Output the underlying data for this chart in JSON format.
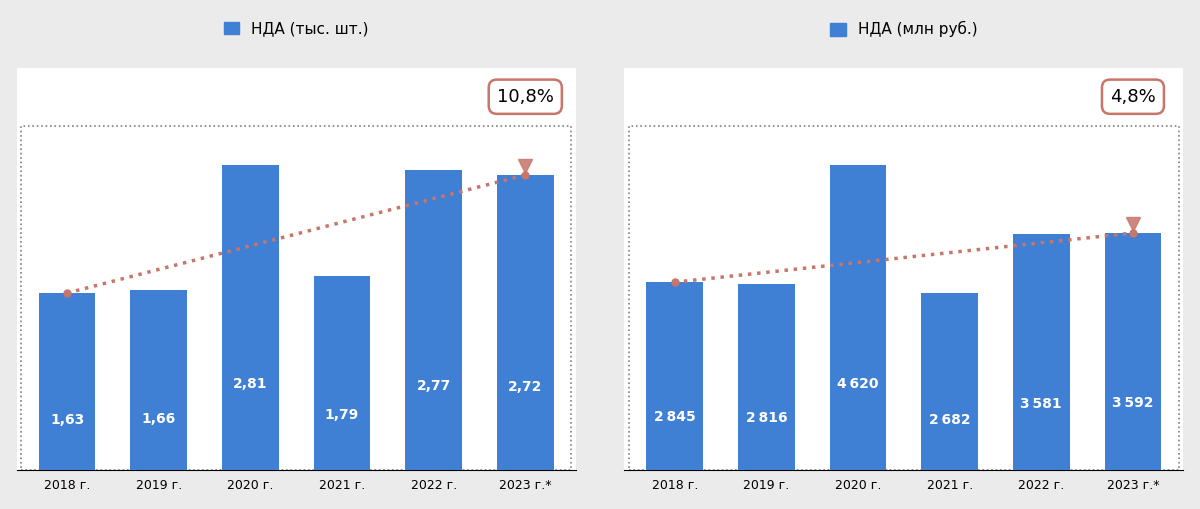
{
  "left_categories": [
    "2018 г.",
    "2019 г.",
    "2020 г.",
    "2021 г.",
    "2022 г.",
    "2023 г.*"
  ],
  "left_values": [
    1.63,
    1.66,
    2.81,
    1.79,
    2.77,
    2.72
  ],
  "left_legend": "НДА (тыс. шт.)",
  "left_cagr": "10,8%",
  "right_categories": [
    "2018 г.",
    "2019 г.",
    "2020 г.",
    "2021 г.",
    "2022 г.",
    "2023 г.*"
  ],
  "right_values": [
    2845,
    2816,
    4620,
    2682,
    3581,
    3592
  ],
  "right_legend": "НДА (млн руб.)",
  "right_cagr": "4,8%",
  "bar_color": "#3f7fd4",
  "trend_color": "#c8756a",
  "bar_label_color": "#ffffff",
  "bar_label_fontsize": 10,
  "axis_label_fontsize": 9,
  "legend_fontsize": 11,
  "cagr_fontsize": 13,
  "background_color": "#ebebeb",
  "plot_bg_color": "#ffffff"
}
